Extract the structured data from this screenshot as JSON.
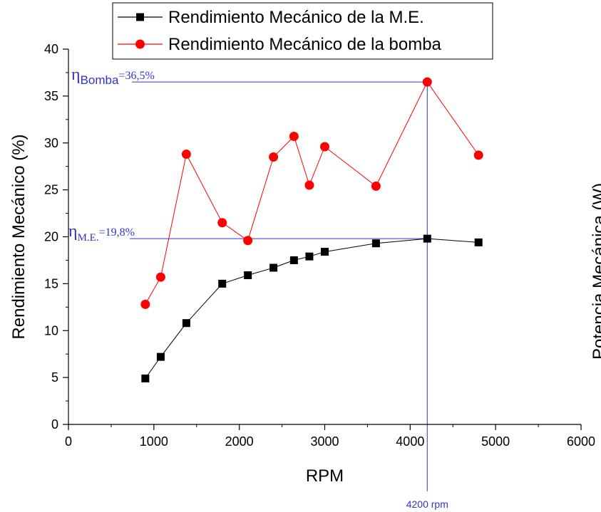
{
  "chart_data": {
    "type": "line",
    "xlabel": "RPM",
    "ylabel": "Rendimiento Mecánico (%)",
    "right_ylabel": "Potencia Mecánica (W)",
    "xlim": [
      0,
      6000
    ],
    "ylim": [
      0,
      40
    ],
    "xticks": [
      0,
      1000,
      2000,
      3000,
      4000,
      5000,
      6000
    ],
    "yticks": [
      0,
      5,
      10,
      15,
      20,
      25,
      30,
      35,
      40
    ],
    "grid": false,
    "legend_position": "top-center",
    "series": [
      {
        "name": "Rendimiento Mecánico de la M.E.",
        "color": "#000000",
        "marker": "square",
        "x": [
          900,
          1080,
          1380,
          1800,
          2100,
          2400,
          2640,
          2820,
          3000,
          3600,
          4200,
          4800
        ],
        "y": [
          4.9,
          7.2,
          10.8,
          15.0,
          15.9,
          16.7,
          17.5,
          17.9,
          18.4,
          19.3,
          19.8,
          19.4
        ]
      },
      {
        "name": "Rendimiento Mecánico de la bomba",
        "color": "#ff0000",
        "marker": "circle",
        "x": [
          900,
          1080,
          1380,
          1800,
          2100,
          2400,
          2640,
          2820,
          3000,
          3600,
          4200,
          4800
        ],
        "y": [
          12.8,
          15.7,
          28.8,
          21.5,
          19.6,
          28.5,
          30.7,
          25.5,
          29.6,
          25.4,
          36.5,
          28.7
        ]
      }
    ],
    "annotations": {
      "accent_color": "#3333cc",
      "eta_symbol": "η",
      "bomba_subscript": "Bomba",
      "bomba_value": "=36,5%",
      "bomba_level": 36.5,
      "me_subscript": "M.E.",
      "me_value": "=19,8%",
      "me_level": 19.8,
      "rpm_marker": 4200,
      "rpm_label": "4200 rpm"
    }
  }
}
